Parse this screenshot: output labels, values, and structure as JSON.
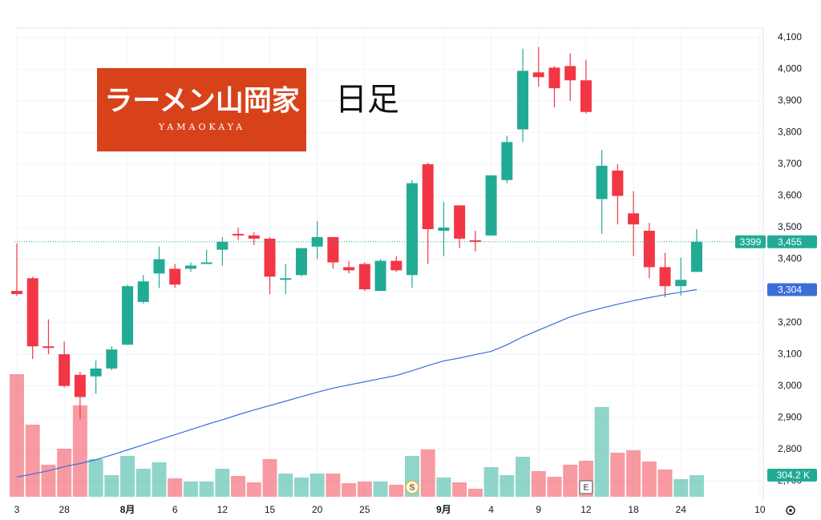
{
  "chart_data": {
    "type": "candlestick",
    "symbol": "3399",
    "logo_title": "ラーメン山岡家",
    "logo_subtitle": "YAMAOKAYA",
    "annotation": "日足",
    "categories": [
      "3",
      null,
      null,
      "28",
      null,
      null,
      null,
      "8月",
      null,
      null,
      "6",
      null,
      null,
      "12",
      null,
      null,
      "15",
      null,
      null,
      "20",
      null,
      null,
      "25",
      null,
      null,
      null,
      null,
      "9月",
      null,
      null,
      "4",
      null,
      null,
      "9",
      null,
      null,
      "12",
      null,
      null,
      "18",
      null,
      null,
      "24",
      null,
      null,
      null,
      null,
      "10"
    ],
    "event_labels": [
      null,
      null,
      null,
      null,
      null,
      null,
      null,
      null,
      null,
      null,
      null,
      null,
      null,
      null,
      null,
      null,
      null,
      null,
      null,
      null,
      null,
      null,
      null,
      null,
      null,
      "S",
      null,
      null,
      null,
      null,
      null,
      null,
      null,
      null,
      null,
      null,
      "E",
      null,
      null,
      null,
      null,
      null,
      null,
      null,
      null,
      null,
      null,
      null
    ],
    "open": [
      3300,
      3340,
      3125,
      3100,
      3035,
      3030,
      3055,
      3130,
      3265,
      3355,
      3370,
      3370,
      3385,
      3430,
      3480,
      3475,
      3465,
      3335,
      3350,
      3440,
      3470,
      3375,
      3385,
      3300,
      3395,
      3350,
      3700,
      3490,
      3570,
      3460,
      3475,
      3650,
      3810,
      3990,
      4005,
      4010,
      3965,
      3590,
      3680,
      3545,
      3490,
      3375,
      3315,
      3360,
      null,
      null,
      null,
      null
    ],
    "high": [
      3450,
      3345,
      3210,
      3140,
      3045,
      3080,
      3125,
      3320,
      3350,
      3440,
      3385,
      3390,
      3430,
      3470,
      3500,
      3485,
      3470,
      3385,
      3435,
      3520,
      3470,
      3395,
      3390,
      3400,
      3410,
      3650,
      3705,
      3580,
      3570,
      3490,
      3665,
      3790,
      4065,
      4070,
      4010,
      4050,
      4030,
      3745,
      3700,
      3615,
      3515,
      3420,
      3405,
      3495,
      null,
      null,
      null,
      null
    ],
    "low": [
      3285,
      3085,
      3100,
      2995,
      2895,
      2975,
      3050,
      3130,
      3260,
      3310,
      3310,
      3360,
      3385,
      3380,
      3460,
      3445,
      3290,
      3290,
      3345,
      3400,
      3370,
      3355,
      3300,
      3300,
      3360,
      3310,
      3385,
      3410,
      3435,
      3425,
      3475,
      3640,
      3770,
      3945,
      3880,
      3900,
      3860,
      3480,
      3510,
      3410,
      3340,
      3280,
      3285,
      3360,
      null,
      null,
      null,
      null
    ],
    "close": [
      3290,
      3125,
      3120,
      3000,
      2965,
      3055,
      3115,
      3315,
      3330,
      3400,
      3320,
      3380,
      3390,
      3455,
      3475,
      3465,
      3345,
      3340,
      3435,
      3470,
      3390,
      3365,
      3305,
      3395,
      3365,
      3640,
      3495,
      3500,
      3465,
      3455,
      3665,
      3770,
      3995,
      3975,
      3940,
      3965,
      3865,
      3695,
      3600,
      3510,
      3375,
      3315,
      3335,
      3455,
      null,
      null,
      null,
      null
    ],
    "last_label": "3,455",
    "volume": {
      "values": [
        1724,
        1014,
        451,
        676,
        1285,
        530,
        304,
        575,
        394,
        485,
        259,
        214,
        214,
        394,
        293,
        203,
        530,
        327,
        270,
        327,
        327,
        192,
        214,
        214,
        169,
        575,
        665,
        270,
        203,
        113,
        417,
        304,
        563,
        361,
        282,
        451,
        507,
        1262,
        620,
        654,
        496,
        383,
        248,
        304.2,
        null,
        null,
        null,
        null
      ],
      "last_label": "304.2 K"
    },
    "ma": {
      "color": "#3a6fd8",
      "values": [
        2712,
        2722,
        2732,
        2745,
        2755,
        2767,
        2782,
        2798,
        2814,
        2830,
        2846,
        2862,
        2878,
        2893,
        2909,
        2924,
        2938,
        2952,
        2966,
        2980,
        2993,
        3003,
        3013,
        3023,
        3033,
        3048,
        3064,
        3079,
        3088,
        3099,
        3109,
        3130,
        3155,
        3176,
        3197,
        3218,
        3233,
        3246,
        3258,
        3269,
        3279,
        3288,
        3296,
        3304,
        null,
        null,
        null,
        null
      ],
      "last_label": "3,304"
    },
    "up_color": "#22ab94",
    "down_color": "#f23645",
    "ylim": [
      2650,
      4130
    ],
    "yticks": [
      {
        "value": 2700,
        "label": "2,700"
      },
      {
        "value": 2800,
        "label": "2,800"
      },
      {
        "value": 2900,
        "label": "2,900"
      },
      {
        "value": 3000,
        "label": "3,000"
      },
      {
        "value": 3100,
        "label": "3,100"
      },
      {
        "value": 3200,
        "label": "3,200"
      },
      {
        "value": 3300,
        "label": "3,300"
      },
      {
        "value": 3400,
        "label": "3,400"
      },
      {
        "value": 3500,
        "label": "3,500"
      },
      {
        "value": 3600,
        "label": "3,600"
      },
      {
        "value": 3700,
        "label": "3,700"
      },
      {
        "value": 3800,
        "label": "3,800"
      },
      {
        "value": 3900,
        "label": "3,900"
      },
      {
        "value": 4000,
        "label": "4,000"
      },
      {
        "value": 4100,
        "label": "4,100"
      }
    ],
    "grid": true
  }
}
